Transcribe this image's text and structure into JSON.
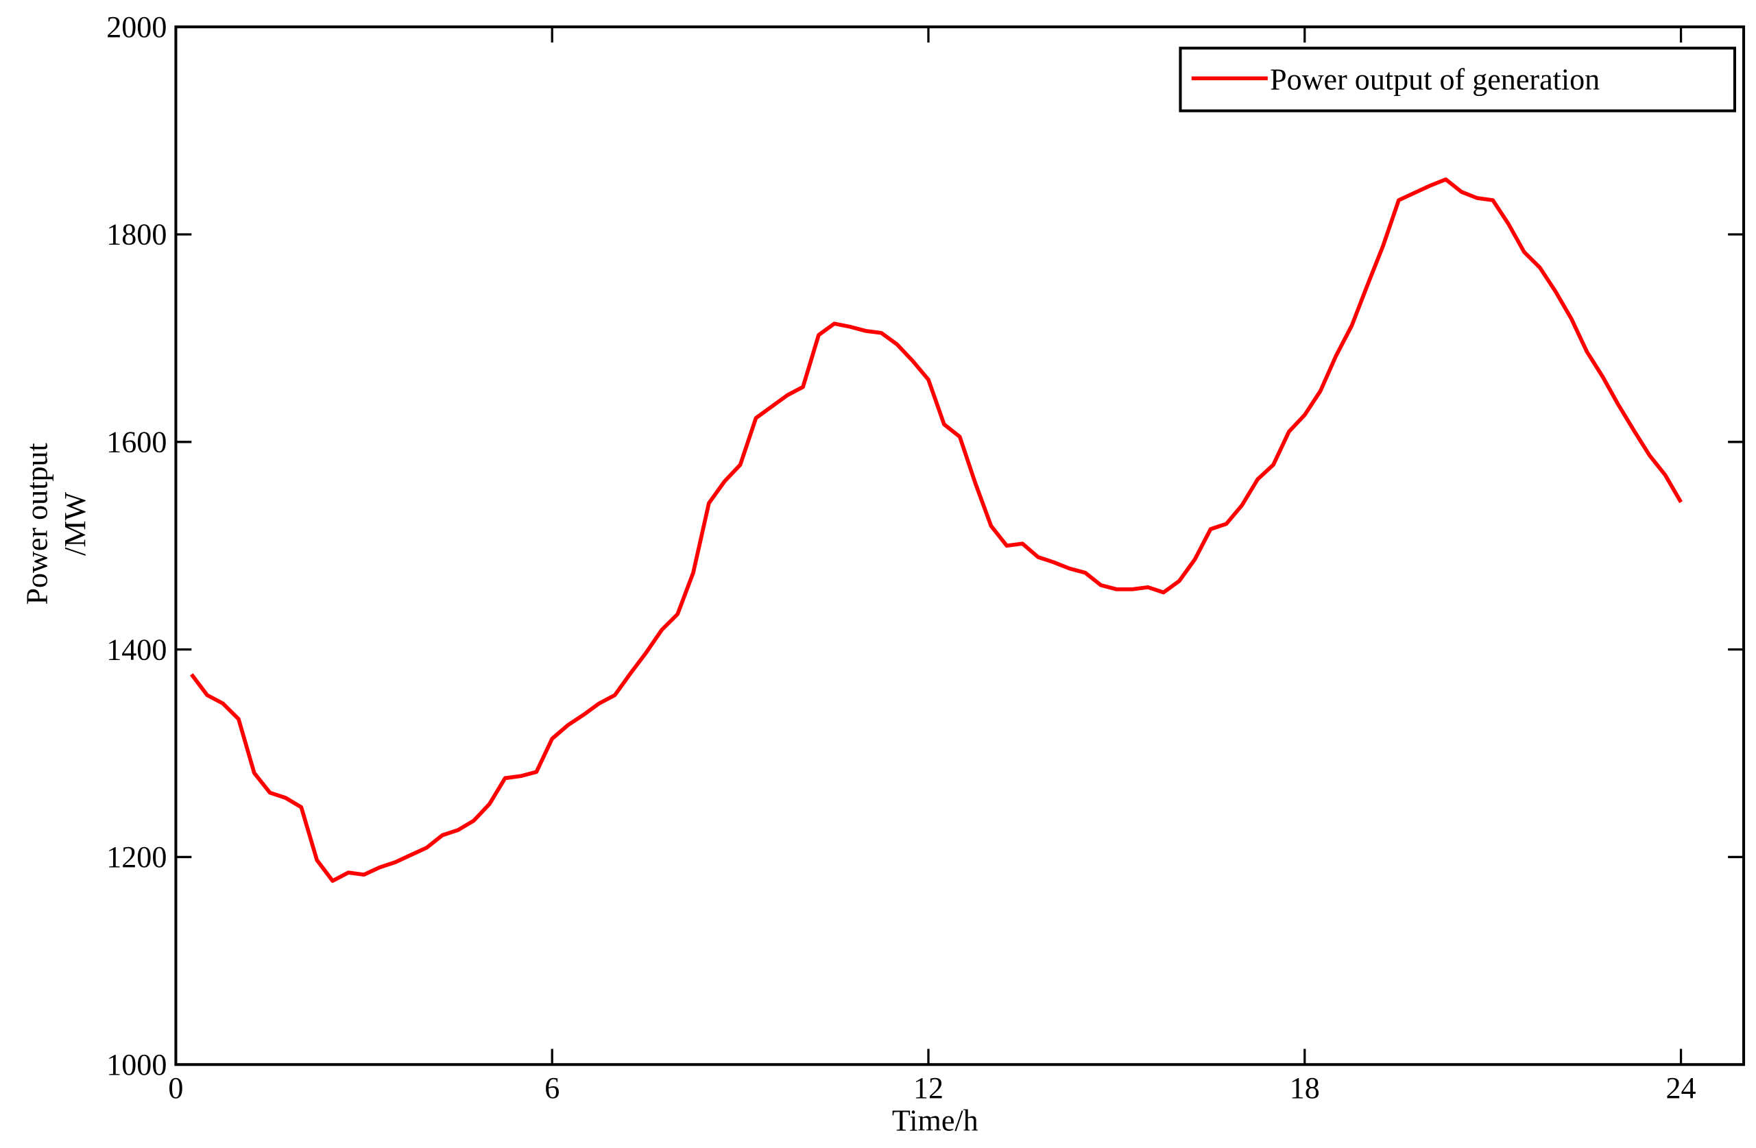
{
  "chart_data": {
    "type": "line",
    "x_label": "Time/h",
    "y_label": [
      "Power output",
      "/MW"
    ],
    "x": [
      0.25,
      0.5,
      0.75,
      1,
      1.25,
      1.5,
      1.75,
      2,
      2.25,
      2.5,
      2.75,
      3,
      3.25,
      3.5,
      3.75,
      4,
      4.25,
      4.5,
      4.75,
      5,
      5.25,
      5.5,
      5.75,
      6,
      6.25,
      6.5,
      6.75,
      7,
      7.25,
      7.5,
      7.75,
      8,
      8.25,
      8.5,
      8.75,
      9,
      9.25,
      9.5,
      9.75,
      10,
      10.25,
      10.5,
      10.75,
      11,
      11.25,
      11.5,
      11.75,
      12,
      12.25,
      12.5,
      12.75,
      13,
      13.25,
      13.5,
      13.75,
      14,
      14.25,
      14.5,
      14.75,
      15,
      15.25,
      15.5,
      15.75,
      16,
      16.25,
      16.5,
      16.75,
      17,
      17.25,
      17.5,
      17.75,
      18,
      18.25,
      18.5,
      18.75,
      19,
      19.25,
      19.5,
      19.75,
      20,
      20.25,
      20.5,
      20.75,
      21,
      21.25,
      21.5,
      21.75,
      22,
      22.25,
      22.5,
      22.75,
      23,
      23.25,
      23.5,
      23.75,
      24
    ],
    "series": [
      {
        "name": "Power output of generation",
        "color": "#ff0000",
        "values": [
          1376,
          1356,
          1348,
          1333,
          1281,
          1262,
          1257,
          1248,
          1197,
          1177,
          1185,
          1183,
          1190,
          1195,
          1202,
          1209,
          1221,
          1226,
          1235,
          1251,
          1276,
          1278,
          1282,
          1314,
          1327,
          1337,
          1348,
          1356,
          1377,
          1397,
          1419,
          1434,
          1474,
          1541,
          1562,
          1578,
          1623,
          1634,
          1645,
          1653,
          1703,
          1714,
          1711,
          1707,
          1705,
          1694,
          1678,
          1660,
          1617,
          1605,
          1560,
          1519,
          1500,
          1502,
          1489,
          1484,
          1478,
          1474,
          1462,
          1458,
          1458,
          1460,
          1455,
          1466,
          1487,
          1516,
          1521,
          1539,
          1564,
          1578,
          1610,
          1626,
          1649,
          1683,
          1712,
          1751,
          1789,
          1833,
          1840,
          1847,
          1853,
          1841,
          1835,
          1833,
          1810,
          1783,
          1768,
          1745,
          1719,
          1687,
          1663,
          1636,
          1611,
          1587,
          1568,
          1542
        ]
      }
    ],
    "xlim": [
      0,
      25
    ],
    "xticks": [
      0,
      6,
      12,
      18,
      24
    ],
    "ylim": [
      1000,
      2000
    ],
    "yticks": [
      1000,
      1200,
      1400,
      1600,
      1800,
      2000
    ],
    "legend": "upper right"
  }
}
